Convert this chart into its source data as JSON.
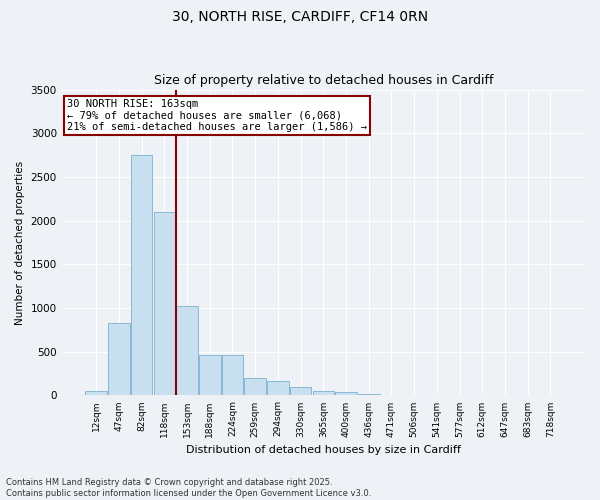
{
  "title_line1": "30, NORTH RISE, CARDIFF, CF14 0RN",
  "title_line2": "Size of property relative to detached houses in Cardiff",
  "xlabel": "Distribution of detached houses by size in Cardiff",
  "ylabel": "Number of detached properties",
  "categories": [
    "12sqm",
    "47sqm",
    "82sqm",
    "118sqm",
    "153sqm",
    "188sqm",
    "224sqm",
    "259sqm",
    "294sqm",
    "330sqm",
    "365sqm",
    "400sqm",
    "436sqm",
    "471sqm",
    "506sqm",
    "541sqm",
    "577sqm",
    "612sqm",
    "647sqm",
    "683sqm",
    "718sqm"
  ],
  "values": [
    50,
    830,
    2750,
    2100,
    1020,
    460,
    460,
    200,
    170,
    95,
    55,
    35,
    18,
    8,
    3,
    1,
    0,
    0,
    0,
    0,
    0
  ],
  "bar_color": "#c8dff0",
  "bar_edge_color": "#7ab0d0",
  "vline_x_index": 3.5,
  "annotation_text": "30 NORTH RISE: 163sqm\n← 79% of detached houses are smaller (6,068)\n21% of semi-detached houses are larger (1,586) →",
  "annotation_box_color": "white",
  "annotation_box_edge_color": "#8b0000",
  "vline_color": "#8b0000",
  "ylim": [
    0,
    3500
  ],
  "yticks": [
    0,
    500,
    1000,
    1500,
    2000,
    2500,
    3000,
    3500
  ],
  "bg_color": "#eef2f7",
  "grid_color": "#ffffff",
  "footer_line1": "Contains HM Land Registry data © Crown copyright and database right 2025.",
  "footer_line2": "Contains public sector information licensed under the Open Government Licence v3.0.",
  "title_fontsize": 10,
  "subtitle_fontsize": 9,
  "annotation_fontsize": 7.5
}
